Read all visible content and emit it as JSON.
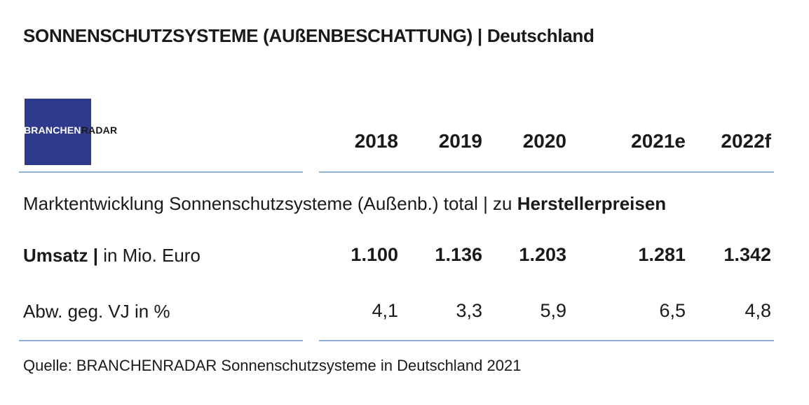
{
  "header": {
    "title": "SONNENSCHUTZSYSTEME (AUßENBESCHATTUNG) | Deutschland"
  },
  "logo": {
    "part1": "BRANCHEN",
    "part2": "RADAR"
  },
  "table": {
    "columns": [
      "2018",
      "2019",
      "2020",
      "2021e",
      "2022f"
    ],
    "subtitle": {
      "text": "Marktentwicklung Sonnenschutzsysteme (Außenb.) total | zu ",
      "emphasis": "Herstellerpreisen"
    },
    "rows": [
      {
        "label": "Umsatz |",
        "unit": " in Mio. Euro",
        "values": [
          "1.100",
          "1.136",
          "1.203",
          "1.281",
          "1.342"
        ]
      },
      {
        "label": "Abw. geg. VJ in %",
        "values": [
          "4,1",
          "3,3",
          "5,9",
          "6,5",
          "4,8"
        ]
      }
    ]
  },
  "footer": {
    "source": "Quelle: BRANCHENRADAR Sonnenschutzsysteme in Deutschland 2021"
  }
}
